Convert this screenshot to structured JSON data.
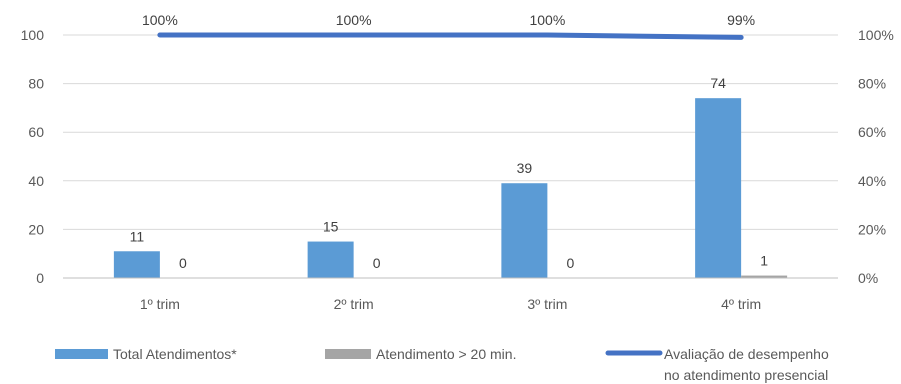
{
  "chart_data": {
    "type": "bar",
    "categories": [
      "1º trim",
      "2º trim",
      "3º trim",
      "4º trim"
    ],
    "series": [
      {
        "name": "Total Atendimentos*",
        "kind": "bar",
        "axis": "left",
        "color": "#5B9BD5",
        "values": [
          11,
          15,
          39,
          74
        ]
      },
      {
        "name": "Atendimento > 20 min.",
        "kind": "bar",
        "axis": "left",
        "color": "#A5A5A5",
        "values": [
          0,
          0,
          0,
          1
        ]
      },
      {
        "name": "Avaliação de desempenho no atendimento presencial",
        "name_lines": [
          "Avaliação de desempenho",
          "no atendimento presencial"
        ],
        "kind": "line",
        "axis": "right",
        "color": "#4472C4",
        "values": [
          100,
          100,
          100,
          99
        ],
        "labels": [
          "100%",
          "100%",
          "100%",
          "99%"
        ]
      }
    ],
    "ylim": [
      0,
      100
    ],
    "y_ticks": [
      "0",
      "20",
      "40",
      "60",
      "80",
      "100"
    ],
    "y2lim": [
      0,
      100
    ],
    "y2_ticks": [
      "0%",
      "20%",
      "40%",
      "60%",
      "80%",
      "100%"
    ],
    "grid": true,
    "legend": "bottom"
  }
}
